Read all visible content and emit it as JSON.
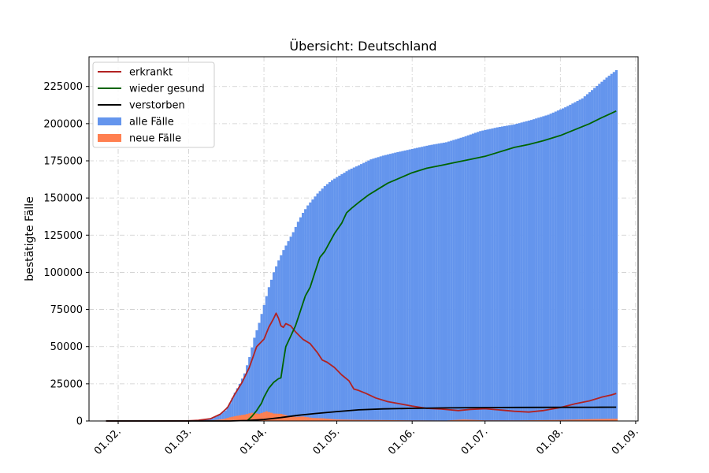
{
  "chart_data": {
    "type": "bar",
    "title": "Übersicht: Deutschland",
    "xlabel": "",
    "ylabel": "bestätigte Fälle",
    "ylim": [
      0,
      245000
    ],
    "x_domain": [
      "2020-01-20",
      "2020-09-02"
    ],
    "x_ticks": [
      {
        "date": "2020-02-01",
        "label": "01.02."
      },
      {
        "date": "2020-03-01",
        "label": "01.03."
      },
      {
        "date": "2020-04-01",
        "label": "01.04."
      },
      {
        "date": "2020-05-01",
        "label": "01.05."
      },
      {
        "date": "2020-06-01",
        "label": "01.06."
      },
      {
        "date": "2020-07-01",
        "label": "01.07."
      },
      {
        "date": "2020-08-01",
        "label": "01.08."
      },
      {
        "date": "2020-09-01",
        "label": "01.09."
      }
    ],
    "y_ticks": [
      0,
      25000,
      50000,
      75000,
      100000,
      125000,
      150000,
      175000,
      200000,
      225000
    ],
    "y_tick_labels": [
      "0",
      "25000",
      "50000",
      "75000",
      "100000",
      "125000",
      "150000",
      "175000",
      "200000",
      "225000"
    ],
    "grid": true,
    "legend_position": "top-left",
    "series": [
      {
        "name": "erkrankt",
        "kind": "line",
        "color": "#b22222",
        "points": [
          [
            "2020-01-27",
            0
          ],
          [
            "2020-02-15",
            0
          ],
          [
            "2020-03-01",
            120
          ],
          [
            "2020-03-05",
            500
          ],
          [
            "2020-03-10",
            1500
          ],
          [
            "2020-03-14",
            4500
          ],
          [
            "2020-03-17",
            9000
          ],
          [
            "2020-03-20",
            18000
          ],
          [
            "2020-03-23",
            26000
          ],
          [
            "2020-03-26",
            36000
          ],
          [
            "2020-03-29",
            50000
          ],
          [
            "2020-04-01",
            55000
          ],
          [
            "2020-04-03",
            63000
          ],
          [
            "2020-04-05",
            69000
          ],
          [
            "2020-04-06",
            72500
          ],
          [
            "2020-04-07",
            69000
          ],
          [
            "2020-04-08",
            64000
          ],
          [
            "2020-04-09",
            63000
          ],
          [
            "2020-04-10",
            65500
          ],
          [
            "2020-04-12",
            64000
          ],
          [
            "2020-04-14",
            60000
          ],
          [
            "2020-04-17",
            55000
          ],
          [
            "2020-04-20",
            52000
          ],
          [
            "2020-04-23",
            46000
          ],
          [
            "2020-04-25",
            41000
          ],
          [
            "2020-04-27",
            39500
          ],
          [
            "2020-04-30",
            36000
          ],
          [
            "2020-05-03",
            31000
          ],
          [
            "2020-05-06",
            27000
          ],
          [
            "2020-05-08",
            21500
          ],
          [
            "2020-05-10",
            20500
          ],
          [
            "2020-05-13",
            18500
          ],
          [
            "2020-05-17",
            15500
          ],
          [
            "2020-05-22",
            13000
          ],
          [
            "2020-05-27",
            11500
          ],
          [
            "2020-06-01",
            10000
          ],
          [
            "2020-06-07",
            8500
          ],
          [
            "2020-06-13",
            8000
          ],
          [
            "2020-06-20",
            7000
          ],
          [
            "2020-06-25",
            7800
          ],
          [
            "2020-07-01",
            8200
          ],
          [
            "2020-07-07",
            7400
          ],
          [
            "2020-07-13",
            6500
          ],
          [
            "2020-07-19",
            6000
          ],
          [
            "2020-07-25",
            7000
          ],
          [
            "2020-08-01",
            9000
          ],
          [
            "2020-08-07",
            11500
          ],
          [
            "2020-08-13",
            13500
          ],
          [
            "2020-08-18",
            16000
          ],
          [
            "2020-08-22",
            17500
          ],
          [
            "2020-08-24",
            18500
          ]
        ]
      },
      {
        "name": "wieder gesund",
        "kind": "line",
        "color": "#006400",
        "points": [
          [
            "2020-03-25",
            0
          ],
          [
            "2020-03-27",
            3000
          ],
          [
            "2020-03-29",
            7000
          ],
          [
            "2020-03-31",
            12000
          ],
          [
            "2020-04-01",
            16000
          ],
          [
            "2020-04-03",
            22000
          ],
          [
            "2020-04-05",
            26000
          ],
          [
            "2020-04-07",
            28500
          ],
          [
            "2020-04-08",
            29000
          ],
          [
            "2020-04-09",
            40000
          ],
          [
            "2020-04-10",
            50000
          ],
          [
            "2020-04-12",
            57000
          ],
          [
            "2020-04-14",
            64000
          ],
          [
            "2020-04-16",
            74000
          ],
          [
            "2020-04-18",
            84000
          ],
          [
            "2020-04-20",
            90000
          ],
          [
            "2020-04-22",
            100000
          ],
          [
            "2020-04-24",
            110000
          ],
          [
            "2020-04-26",
            114000
          ],
          [
            "2020-04-28",
            120000
          ],
          [
            "2020-04-30",
            126000
          ],
          [
            "2020-05-03",
            133000
          ],
          [
            "2020-05-05",
            140000
          ],
          [
            "2020-05-07",
            143000
          ],
          [
            "2020-05-10",
            147000
          ],
          [
            "2020-05-14",
            152000
          ],
          [
            "2020-05-18",
            156000
          ],
          [
            "2020-05-22",
            160000
          ],
          [
            "2020-05-27",
            163500
          ],
          [
            "2020-06-01",
            167000
          ],
          [
            "2020-06-07",
            170000
          ],
          [
            "2020-06-13",
            172000
          ],
          [
            "2020-06-19",
            174000
          ],
          [
            "2020-06-25",
            176000
          ],
          [
            "2020-07-01",
            178000
          ],
          [
            "2020-07-07",
            181000
          ],
          [
            "2020-07-13",
            184000
          ],
          [
            "2020-07-19",
            186000
          ],
          [
            "2020-07-25",
            188500
          ],
          [
            "2020-08-01",
            192000
          ],
          [
            "2020-08-07",
            196000
          ],
          [
            "2020-08-13",
            200000
          ],
          [
            "2020-08-18",
            204000
          ],
          [
            "2020-08-22",
            207000
          ],
          [
            "2020-08-24",
            208500
          ]
        ]
      },
      {
        "name": "verstorben",
        "kind": "line",
        "color": "#000000",
        "points": [
          [
            "2020-01-27",
            0
          ],
          [
            "2020-03-18",
            0
          ],
          [
            "2020-03-25",
            300
          ],
          [
            "2020-04-01",
            1000
          ],
          [
            "2020-04-08",
            2300
          ],
          [
            "2020-04-15",
            3800
          ],
          [
            "2020-04-22",
            5000
          ],
          [
            "2020-05-01",
            6300
          ],
          [
            "2020-05-10",
            7500
          ],
          [
            "2020-05-20",
            8100
          ],
          [
            "2020-06-01",
            8500
          ],
          [
            "2020-06-15",
            8800
          ],
          [
            "2020-07-01",
            9000
          ],
          [
            "2020-07-15",
            9100
          ],
          [
            "2020-08-01",
            9200
          ],
          [
            "2020-08-15",
            9250
          ],
          [
            "2020-08-24",
            9300
          ]
        ]
      },
      {
        "name": "alle Fälle",
        "kind": "bar",
        "color": "#6495ed",
        "points": [
          [
            "2020-03-01",
            100
          ],
          [
            "2020-03-05",
            400
          ],
          [
            "2020-03-08",
            900
          ],
          [
            "2020-03-11",
            1800
          ],
          [
            "2020-03-14",
            4500
          ],
          [
            "2020-03-16",
            7000
          ],
          [
            "2020-03-18",
            12000
          ],
          [
            "2020-03-20",
            19000
          ],
          [
            "2020-03-22",
            25000
          ],
          [
            "2020-03-24",
            32000
          ],
          [
            "2020-03-26",
            43000
          ],
          [
            "2020-03-28",
            56000
          ],
          [
            "2020-03-30",
            66000
          ],
          [
            "2020-04-01",
            78000
          ],
          [
            "2020-04-03",
            90000
          ],
          [
            "2020-04-05",
            100000
          ],
          [
            "2020-04-07",
            108000
          ],
          [
            "2020-04-09",
            115000
          ],
          [
            "2020-04-11",
            121000
          ],
          [
            "2020-04-13",
            127000
          ],
          [
            "2020-04-15",
            134000
          ],
          [
            "2020-04-17",
            140000
          ],
          [
            "2020-04-19",
            145000
          ],
          [
            "2020-04-21",
            149000
          ],
          [
            "2020-04-23",
            153000
          ],
          [
            "2020-04-26",
            158000
          ],
          [
            "2020-04-29",
            162000
          ],
          [
            "2020-05-02",
            165000
          ],
          [
            "2020-05-06",
            169000
          ],
          [
            "2020-05-10",
            172000
          ],
          [
            "2020-05-15",
            176000
          ],
          [
            "2020-05-20",
            178500
          ],
          [
            "2020-05-25",
            180500
          ],
          [
            "2020-06-01",
            183000
          ],
          [
            "2020-06-08",
            185500
          ],
          [
            "2020-06-15",
            187500
          ],
          [
            "2020-06-22",
            191000
          ],
          [
            "2020-06-29",
            195000
          ],
          [
            "2020-07-06",
            197500
          ],
          [
            "2020-07-13",
            199500
          ],
          [
            "2020-07-20",
            202500
          ],
          [
            "2020-07-27",
            206000
          ],
          [
            "2020-08-03",
            211000
          ],
          [
            "2020-08-10",
            217000
          ],
          [
            "2020-08-15",
            224000
          ],
          [
            "2020-08-20",
            231000
          ],
          [
            "2020-08-24",
            236000
          ]
        ]
      },
      {
        "name": "neue Fälle",
        "kind": "bar",
        "color": "#ff7f50",
        "points": [
          [
            "2020-03-01",
            50
          ],
          [
            "2020-03-10",
            300
          ],
          [
            "2020-03-15",
            1200
          ],
          [
            "2020-03-18",
            2500
          ],
          [
            "2020-03-21",
            3500
          ],
          [
            "2020-03-24",
            4300
          ],
          [
            "2020-03-27",
            5500
          ],
          [
            "2020-03-30",
            4800
          ],
          [
            "2020-04-02",
            6500
          ],
          [
            "2020-04-05",
            5000
          ],
          [
            "2020-04-08",
            4800
          ],
          [
            "2020-04-11",
            3500
          ],
          [
            "2020-04-14",
            2800
          ],
          [
            "2020-04-17",
            3000
          ],
          [
            "2020-04-21",
            2000
          ],
          [
            "2020-04-25",
            1800
          ],
          [
            "2020-05-01",
            1000
          ],
          [
            "2020-05-10",
            700
          ],
          [
            "2020-05-20",
            600
          ],
          [
            "2020-06-01",
            400
          ],
          [
            "2020-06-15",
            300
          ],
          [
            "2020-06-22",
            1000
          ],
          [
            "2020-07-01",
            400
          ],
          [
            "2020-07-15",
            400
          ],
          [
            "2020-08-01",
            700
          ],
          [
            "2020-08-15",
            1300
          ],
          [
            "2020-08-24",
            1500
          ]
        ]
      }
    ]
  }
}
